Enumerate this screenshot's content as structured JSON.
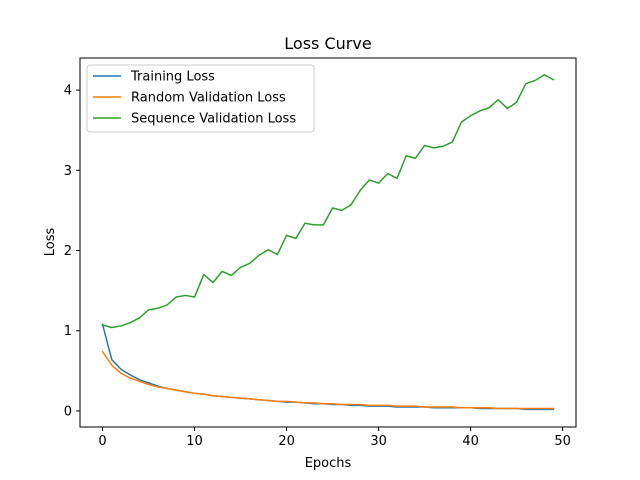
{
  "chart_data": {
    "type": "line",
    "title": "Loss Curve",
    "xlabel": "Epochs",
    "ylabel": "Loss",
    "xlim": [
      -2.45,
      51.45
    ],
    "ylim": [
      -0.2,
      4.4
    ],
    "xticks": [
      0,
      10,
      20,
      30,
      40,
      50
    ],
    "yticks": [
      0,
      1,
      2,
      3,
      4
    ],
    "grid": false,
    "legend_position": "top-left",
    "x": [
      0,
      1,
      2,
      3,
      4,
      5,
      6,
      7,
      8,
      9,
      10,
      11,
      12,
      13,
      14,
      15,
      16,
      17,
      18,
      19,
      20,
      21,
      22,
      23,
      24,
      25,
      26,
      27,
      28,
      29,
      30,
      31,
      32,
      33,
      34,
      35,
      36,
      37,
      38,
      39,
      40,
      41,
      42,
      43,
      44,
      45,
      46,
      47,
      48,
      49
    ],
    "series": [
      {
        "name": "Training Loss",
        "color": "#1f77b4",
        "values": [
          1.08,
          0.64,
          0.52,
          0.45,
          0.39,
          0.35,
          0.31,
          0.28,
          0.26,
          0.24,
          0.22,
          0.21,
          0.19,
          0.18,
          0.17,
          0.16,
          0.15,
          0.14,
          0.13,
          0.12,
          0.11,
          0.11,
          0.1,
          0.09,
          0.09,
          0.08,
          0.08,
          0.07,
          0.07,
          0.06,
          0.06,
          0.06,
          0.05,
          0.05,
          0.05,
          0.05,
          0.04,
          0.04,
          0.04,
          0.04,
          0.04,
          0.03,
          0.03,
          0.03,
          0.03,
          0.03,
          0.02,
          0.02,
          0.02,
          0.02
        ]
      },
      {
        "name": "Random Validation Loss",
        "color": "#ff7f0e",
        "values": [
          0.74,
          0.57,
          0.47,
          0.41,
          0.37,
          0.33,
          0.3,
          0.28,
          0.26,
          0.24,
          0.22,
          0.21,
          0.19,
          0.18,
          0.17,
          0.16,
          0.15,
          0.14,
          0.13,
          0.12,
          0.12,
          0.11,
          0.1,
          0.1,
          0.09,
          0.09,
          0.08,
          0.08,
          0.08,
          0.07,
          0.07,
          0.07,
          0.06,
          0.06,
          0.06,
          0.05,
          0.05,
          0.05,
          0.05,
          0.04,
          0.04,
          0.04,
          0.04,
          0.03,
          0.03,
          0.03,
          0.03,
          0.03,
          0.03,
          0.03
        ]
      },
      {
        "name": "Sequence Validation Loss",
        "color": "#2ca02c",
        "values": [
          1.07,
          1.04,
          1.06,
          1.1,
          1.16,
          1.26,
          1.28,
          1.32,
          1.42,
          1.44,
          1.42,
          1.7,
          1.6,
          1.74,
          1.69,
          1.79,
          1.84,
          1.94,
          2.01,
          1.95,
          2.19,
          2.15,
          2.34,
          2.32,
          2.32,
          2.53,
          2.5,
          2.57,
          2.75,
          2.88,
          2.84,
          2.96,
          2.9,
          3.18,
          3.15,
          3.31,
          3.28,
          3.3,
          3.35,
          3.6,
          3.68,
          3.74,
          3.78,
          3.88,
          3.77,
          3.85,
          4.08,
          4.12,
          4.19,
          4.13
        ]
      }
    ]
  }
}
